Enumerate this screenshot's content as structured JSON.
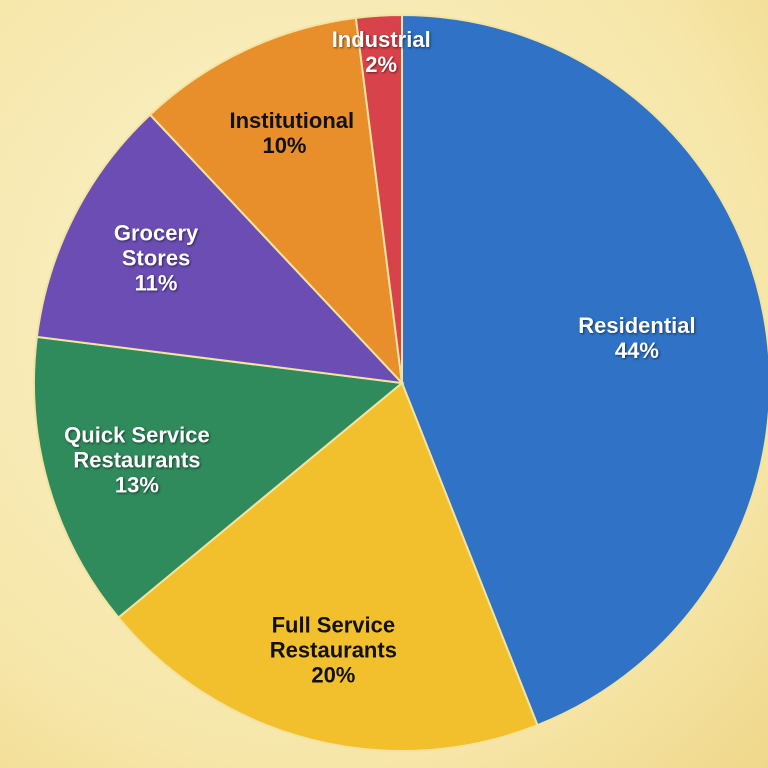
{
  "chart_data": {
    "type": "pie",
    "categories": [
      "Residential",
      "Full Service Restaurants",
      "Quick Service Restaurants",
      "Grocery Stores",
      "Institutional",
      "Industrial"
    ],
    "values": [
      44,
      20,
      13,
      11,
      10,
      2
    ],
    "value_labels": [
      "44%",
      "20%",
      "13%",
      "11%",
      "10%",
      "2%"
    ],
    "colors": [
      "#2f72c6",
      "#f2c02c",
      "#2f8a5c",
      "#6b4db4",
      "#e88f2c",
      "#d8424a"
    ]
  }
}
